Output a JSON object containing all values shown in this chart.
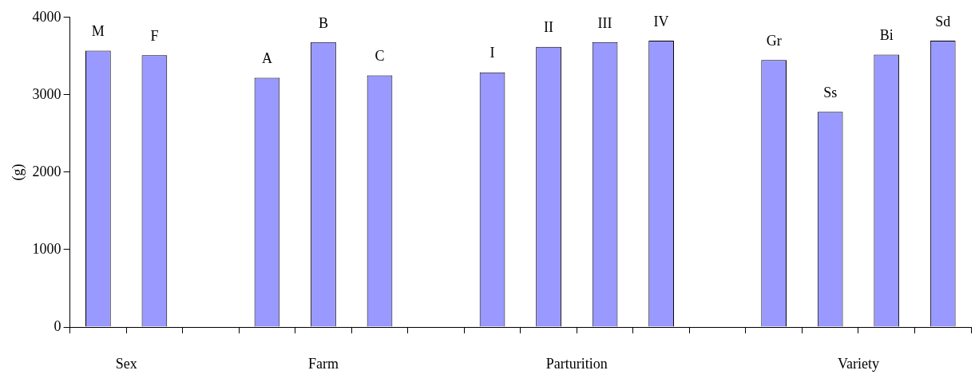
{
  "chart_data": {
    "type": "bar",
    "ylabel": "(g)",
    "categories": [
      "M",
      "F",
      null,
      "A",
      "B",
      "C",
      null,
      "I",
      "II",
      "III",
      "IV",
      null,
      "Gr",
      "Ss",
      "Bi",
      "Sd"
    ],
    "values": [
      3570,
      3510,
      null,
      3220,
      3680,
      3250,
      null,
      3290,
      3620,
      3680,
      3700,
      null,
      3450,
      2780,
      3520,
      3700
    ],
    "color": "#9999ff",
    "ylim": [
      0,
      4000
    ],
    "yticks": [
      0,
      1000,
      2000,
      3000,
      4000
    ],
    "grid": false,
    "legend": false,
    "annotations": [
      "Sex",
      "Farm",
      "Parturition",
      "Variety"
    ]
  }
}
